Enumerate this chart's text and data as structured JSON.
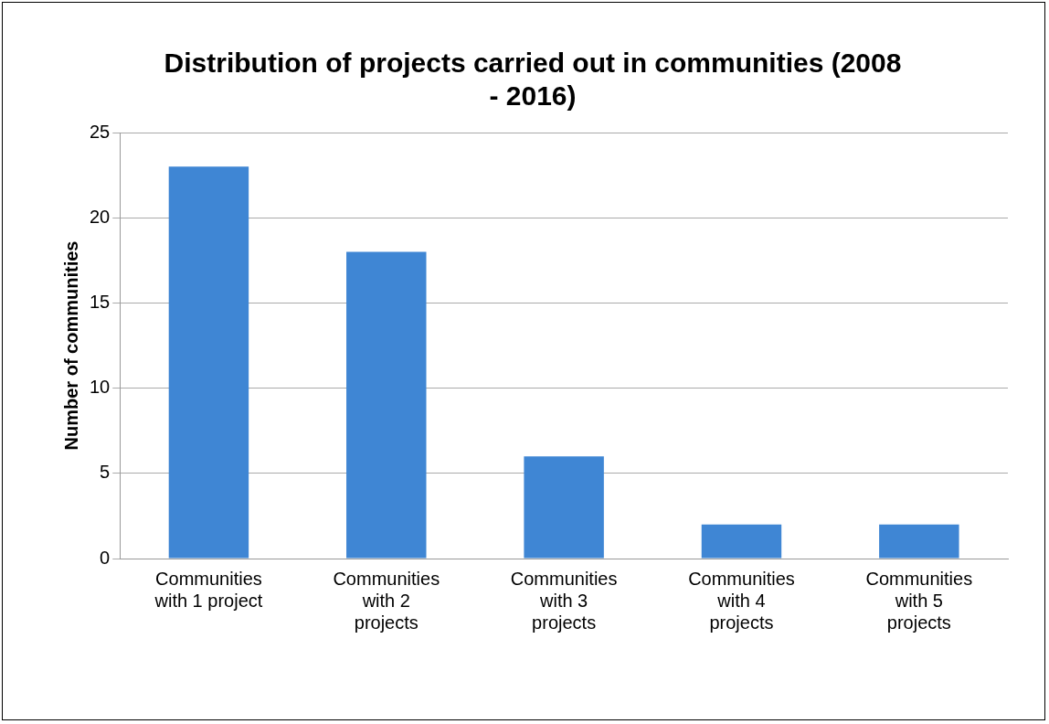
{
  "chart_data": {
    "type": "bar",
    "title": "Distribution of projects carried out in communities (2008 - 2016)",
    "ylabel": "Number of communities",
    "categories": [
      "Communities with 1 project",
      "Communities with 2 projects",
      "Communities with 3 projects",
      "Communities with 4 projects",
      "Communities with 5 projects"
    ],
    "values": [
      23,
      18,
      6,
      2,
      2
    ],
    "color": "#3f86d4",
    "ylim": [
      0,
      25
    ],
    "yticks": [
      0,
      5,
      10,
      15,
      20,
      25
    ],
    "grid": "y",
    "legend": false
  }
}
